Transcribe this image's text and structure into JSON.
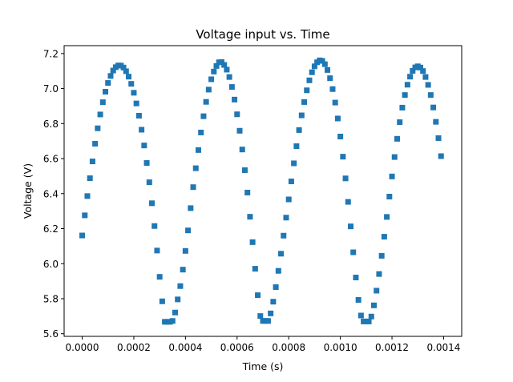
{
  "chart_data": {
    "type": "scatter",
    "title": "Voltage input vs. Time",
    "xlabel": "Time (s)",
    "ylabel": "Voltage (V)",
    "xlim": [
      -7e-05,
      0.00147
    ],
    "ylim": [
      5.585,
      7.245
    ],
    "xticks": [
      0.0,
      0.0002,
      0.0004,
      0.0006,
      0.0008,
      0.001,
      0.0012,
      0.0014
    ],
    "xtick_labels": [
      "0.0000",
      "0.0002",
      "0.0004",
      "0.0006",
      "0.0008",
      "0.0010",
      "0.0012",
      "0.0014"
    ],
    "yticks": [
      5.6,
      5.8,
      6.0,
      6.2,
      6.4,
      6.6,
      6.8,
      7.0,
      7.2
    ],
    "ytick_labels": [
      "5.6",
      "5.8",
      "6.0",
      "6.2",
      "6.4",
      "6.6",
      "6.8",
      "7.0",
      "7.2"
    ],
    "grid": false,
    "marker": "square",
    "series": [
      {
        "name": "Voltage",
        "color": "#1f77b4",
        "x": [
          0.0,
          1e-05,
          2e-05,
          3e-05,
          4e-05,
          5e-05,
          6e-05,
          7e-05,
          8e-05,
          9e-05,
          0.0001,
          0.00011,
          0.00012,
          0.00013,
          0.00014,
          0.00015,
          0.00016,
          0.00017,
          0.00018,
          0.00019,
          0.0002,
          0.00021,
          0.00022,
          0.00023,
          0.00024,
          0.00025,
          0.00026,
          0.00027,
          0.00028,
          0.00029,
          0.0003,
          0.00031,
          0.00032,
          0.00033,
          0.00034,
          0.00035,
          0.00036,
          0.00037,
          0.00038,
          0.00039,
          0.0004,
          0.00041,
          0.00042,
          0.00043,
          0.00044,
          0.00045,
          0.00046,
          0.00047,
          0.00048,
          0.00049,
          0.0005,
          0.00051,
          0.00052,
          0.00053,
          0.00054,
          0.00055,
          0.00056,
          0.00057,
          0.00058,
          0.00059,
          0.0006,
          0.00061,
          0.00062,
          0.00063,
          0.00064,
          0.00065,
          0.00066,
          0.00067,
          0.00068,
          0.00069,
          0.0007,
          0.00071,
          0.00072,
          0.00073,
          0.00074,
          0.00075,
          0.00076,
          0.00077,
          0.00078,
          0.00079,
          0.0008,
          0.00081,
          0.00082,
          0.00083,
          0.00084,
          0.00085,
          0.00086,
          0.00087,
          0.00088,
          0.00089,
          0.0009,
          0.00091,
          0.00092,
          0.00093,
          0.00094,
          0.00095,
          0.00096,
          0.00097,
          0.00098,
          0.00099,
          0.001,
          0.00101,
          0.00102,
          0.00103,
          0.00104,
          0.00105,
          0.00106,
          0.00107,
          0.00108,
          0.00109,
          0.0011,
          0.00111,
          0.00112,
          0.00113,
          0.00114,
          0.00115,
          0.00116,
          0.00117,
          0.00118,
          0.00119,
          0.0012,
          0.00121,
          0.00122,
          0.00123,
          0.00124,
          0.00125,
          0.00126,
          0.00127,
          0.00128,
          0.00129,
          0.0013,
          0.00131,
          0.00132,
          0.00133,
          0.00134,
          0.00135,
          0.00136,
          0.00137,
          0.00138,
          0.00139
        ],
        "y": [
          6.161,
          6.276,
          6.386,
          6.488,
          6.584,
          6.685,
          6.773,
          6.852,
          6.922,
          6.982,
          7.032,
          7.072,
          7.103,
          7.122,
          7.132,
          7.131,
          7.12,
          7.099,
          7.068,
          7.027,
          6.976,
          6.915,
          6.845,
          6.765,
          6.675,
          6.575,
          6.465,
          6.345,
          6.215,
          6.075,
          5.925,
          5.785,
          5.668,
          5.668,
          5.668,
          5.673,
          5.721,
          5.796,
          5.872,
          5.966,
          6.073,
          6.19,
          6.317,
          6.437,
          6.545,
          6.649,
          6.749,
          6.842,
          6.924,
          6.994,
          7.053,
          7.097,
          7.129,
          7.15,
          7.151,
          7.135,
          7.108,
          7.066,
          7.009,
          6.937,
          6.853,
          6.759,
          6.652,
          6.534,
          6.406,
          6.268,
          6.123,
          5.971,
          5.82,
          5.701,
          5.673,
          5.673,
          5.673,
          5.716,
          5.783,
          5.866,
          5.959,
          6.057,
          6.16,
          6.263,
          6.367,
          6.47,
          6.573,
          6.671,
          6.763,
          6.847,
          6.923,
          6.99,
          7.047,
          7.093,
          7.127,
          7.15,
          7.161,
          7.158,
          7.139,
          7.106,
          7.059,
          6.997,
          6.92,
          6.829,
          6.726,
          6.611,
          6.487,
          6.353,
          6.213,
          6.065,
          5.921,
          5.793,
          5.704,
          5.67,
          5.67,
          5.67,
          5.698,
          5.762,
          5.846,
          5.941,
          6.045,
          6.154,
          6.267,
          6.383,
          6.498,
          6.609,
          6.713,
          6.808,
          6.891,
          6.963,
          7.022,
          7.068,
          7.101,
          7.121,
          7.127,
          7.12,
          7.1,
          7.066,
          7.021,
          6.963,
          6.892,
          6.81,
          6.717,
          6.614
        ]
      }
    ]
  }
}
